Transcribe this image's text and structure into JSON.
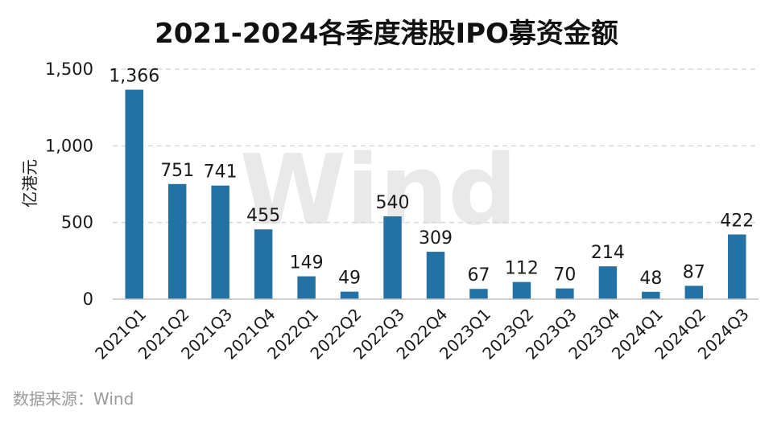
{
  "chart_data": {
    "type": "bar",
    "title": "2021-2024各季度港股IPO募资金额",
    "ylabel": "亿港元",
    "xlabel": "",
    "ylim": [
      0,
      1500
    ],
    "yticks": [
      0,
      500,
      1000,
      1500
    ],
    "ytick_labels": [
      "0",
      "500",
      "1,000",
      "1,500"
    ],
    "grid": true,
    "categories": [
      "2021Q1",
      "2021Q2",
      "2021Q3",
      "2021Q4",
      "2022Q1",
      "2022Q2",
      "2022Q3",
      "2022Q4",
      "2023Q1",
      "2023Q2",
      "2023Q3",
      "2023Q4",
      "2024Q1",
      "2024Q2",
      "2024Q3"
    ],
    "values": [
      1366,
      751,
      741,
      455,
      149,
      49,
      540,
      309,
      67,
      112,
      70,
      214,
      48,
      87,
      422
    ],
    "value_labels": [
      "1,366",
      "751",
      "741",
      "455",
      "149",
      "49",
      "540",
      "309",
      "67",
      "112",
      "70",
      "214",
      "48",
      "87",
      "422"
    ],
    "bar_color": "#2471a3",
    "grid_color": "#d9d9d9",
    "watermark": "Wind",
    "source": "数据来源：Wind"
  }
}
